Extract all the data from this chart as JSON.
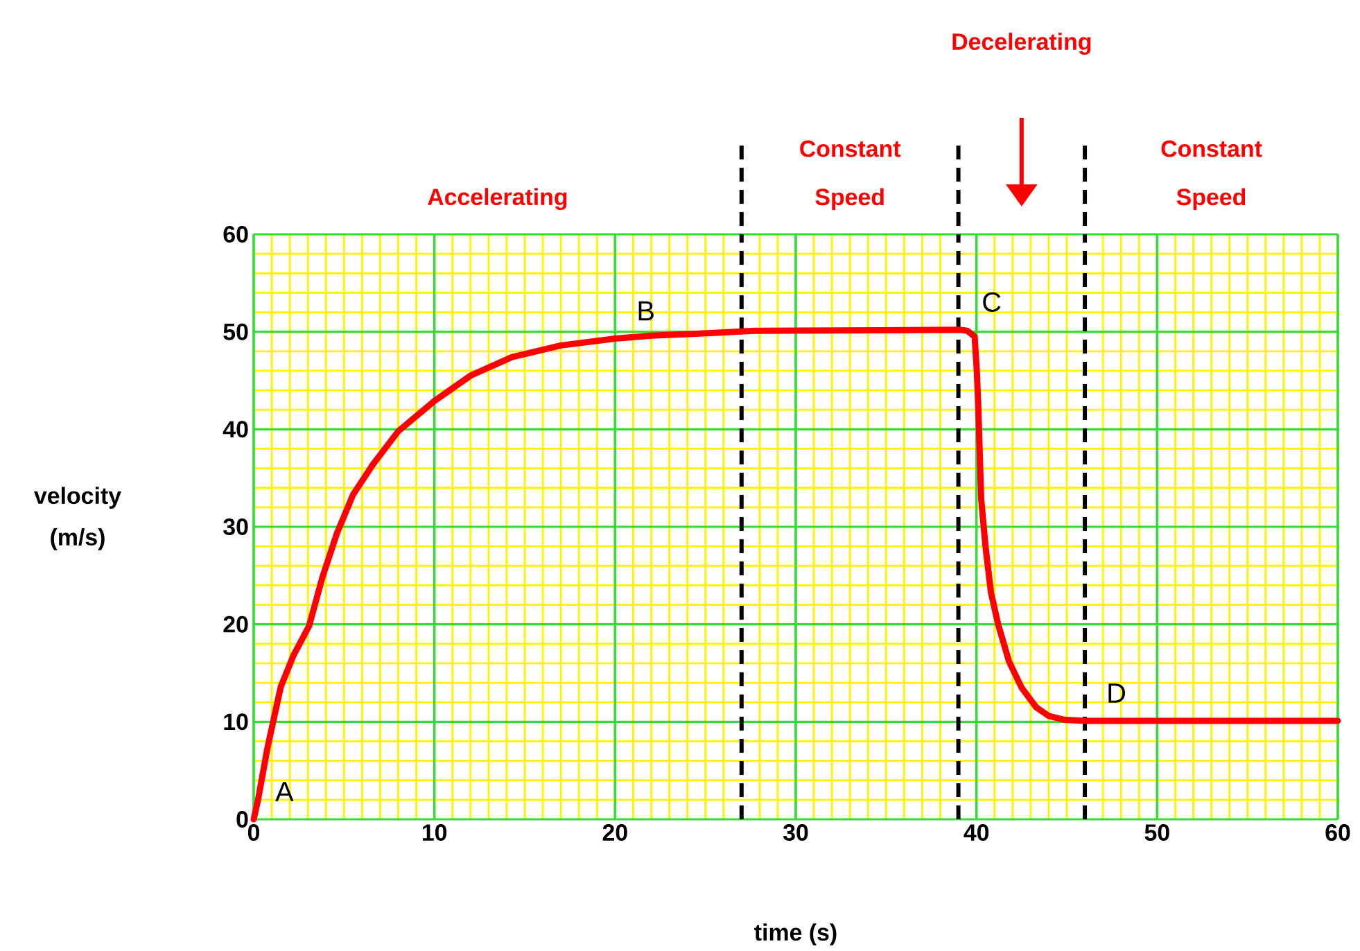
{
  "chart_data": {
    "type": "line",
    "xlabel": "time (s)",
    "ylabel": "velocity (m/s)",
    "x": [
      0,
      0.25,
      0.77,
      1.5,
      2.2,
      3.06,
      3.8,
      4.6,
      5.5,
      6.6,
      8,
      10,
      12,
      14.3,
      17,
      20,
      22,
      24.5,
      27.7,
      39.1,
      39.5,
      39.9,
      40.02,
      40.1,
      40.26,
      40.5,
      40.8,
      41.2,
      41.8,
      42.5,
      43.3,
      44,
      44.9,
      46,
      60
    ],
    "series": [
      {
        "color": "#ff0000",
        "values": [
          0,
          2.1,
          7.4,
          13.6,
          16.8,
          19.8,
          24.8,
          29.3,
          33.3,
          36.4,
          39.8,
          42.9,
          45.5,
          47.4,
          48.6,
          49.3,
          49.6,
          49.8,
          50.1,
          50.2,
          50.1,
          49.5,
          46,
          42.4,
          32.9,
          28,
          23.3,
          20,
          16.2,
          13.5,
          11.5,
          10.6,
          10.2,
          10.1,
          10.1
        ]
      }
    ],
    "xlim": [
      0,
      60
    ],
    "ylim": [
      0,
      60
    ],
    "xticks": [
      0,
      {
        "value": 1,
        "label": null
      },
      {
        "value": 2,
        "label": null
      },
      {
        "value": 3,
        "label": null
      },
      {
        "value": 4,
        "label": null
      },
      {
        "value": 5,
        "label": null
      },
      {
        "value": 6,
        "label": null
      },
      {
        "value": 7,
        "label": null
      },
      {
        "value": 8,
        "label": null
      },
      {
        "value": 9,
        "label": null
      },
      10,
      {
        "value": 11,
        "label": null
      },
      {
        "value": 12,
        "label": null
      },
      {
        "value": 13,
        "label": null
      },
      {
        "value": 14,
        "label": null
      },
      {
        "value": 15,
        "label": null
      },
      {
        "value": 16,
        "label": null
      },
      {
        "value": 17,
        "label": null
      },
      {
        "value": 18,
        "label": null
      },
      {
        "value": 19,
        "label": null
      },
      20,
      {
        "value": 21,
        "label": null
      },
      {
        "value": 22,
        "label": null
      },
      {
        "value": 23,
        "label": null
      },
      {
        "value": 24,
        "label": null
      },
      {
        "value": 25,
        "label": null
      },
      {
        "value": 26,
        "label": null
      },
      {
        "value": 28,
        "label": null
      },
      {
        "value": 29,
        "label": null
      },
      30,
      {
        "value": 31,
        "label": null
      },
      {
        "value": 32,
        "label": null
      },
      {
        "value": 33,
        "label": null
      },
      {
        "value": 34,
        "label": null
      },
      {
        "value": 35,
        "label": null
      },
      {
        "value": 36,
        "label": null
      },
      {
        "value": 37,
        "label": null
      },
      {
        "value": 38,
        "label": null
      },
      40,
      {
        "value": 41,
        "label": null
      },
      {
        "value": 42,
        "label": null
      },
      {
        "value": 43,
        "label": null
      },
      {
        "value": 44,
        "label": null
      },
      {
        "value": 45,
        "label": null
      },
      {
        "value": 47,
        "label": null
      },
      {
        "value": 48,
        "label": null
      },
      {
        "value": 49,
        "label": null
      },
      50,
      {
        "value": 51,
        "label": null
      },
      {
        "value": 52,
        "label": null
      },
      {
        "value": 53,
        "label": null
      },
      {
        "value": 54,
        "label": null
      },
      {
        "value": 55,
        "label": null
      },
      {
        "value": 56,
        "label": null
      },
      {
        "value": 57,
        "label": null
      },
      {
        "value": 58,
        "label": null
      },
      {
        "value": 59,
        "label": null
      },
      60
    ],
    "yticks": [
      0,
      {
        "value": 2,
        "label": null
      },
      {
        "value": 4,
        "label": null
      },
      {
        "value": 6,
        "label": null
      },
      {
        "value": 8,
        "label": null
      },
      10,
      {
        "value": 12,
        "label": null
      },
      {
        "value": 14,
        "label": null
      },
      {
        "value": 16,
        "label": null
      },
      {
        "value": 18,
        "label": null
      },
      20,
      {
        "value": 22,
        "label": null
      },
      {
        "value": 24,
        "label": null
      },
      {
        "value": 26,
        "label": null
      },
      {
        "value": 28,
        "label": null
      },
      30,
      {
        "value": 32,
        "label": null
      },
      {
        "value": 34,
        "label": null
      },
      {
        "value": 36,
        "label": null
      },
      {
        "value": 38,
        "label": null
      },
      40,
      {
        "value": 42,
        "label": null
      },
      {
        "value": 44,
        "label": null
      },
      {
        "value": 46,
        "label": null
      },
      {
        "value": 48,
        "label": null
      },
      50,
      {
        "value": 52,
        "label": null
      },
      {
        "value": 54,
        "label": null
      },
      {
        "value": 56,
        "label": null
      },
      {
        "value": 58,
        "label": null
      },
      60
    ],
    "grid": true,
    "marker": "none",
    "line_style": "solid",
    "ref_lines": [
      {
        "axis": "x",
        "value": 27,
        "color": "#000000",
        "line_style": "dashed"
      },
      {
        "axis": "x",
        "value": 39,
        "color": "#000000",
        "line_style": "dashed"
      },
      {
        "axis": "x",
        "value": 46,
        "color": "#000000",
        "line_style": "dashed"
      }
    ],
    "annotations": [
      "Accelerating",
      "Constant Speed",
      "Decelerating",
      "Constant Speed",
      {
        "text": "A",
        "x": 0,
        "y": 0
      },
      {
        "text": "B",
        "x": 20,
        "y": 49.3
      },
      {
        "text": "C",
        "x": 39.1,
        "y": 50.2
      },
      {
        "text": "D",
        "x": 46,
        "y": 10.1
      }
    ]
  }
}
